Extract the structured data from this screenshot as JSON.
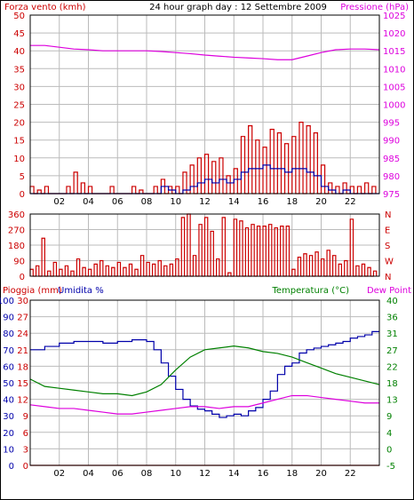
{
  "colors": {
    "red": "#cc0000",
    "blue": "#0000aa",
    "magenta": "#dd00dd",
    "green": "#008000",
    "grid": "#bbbbbb",
    "axis": "#000000",
    "frame": "#000000"
  },
  "hour_ticks": [
    "02",
    "04",
    "06",
    "08",
    "10",
    "12",
    "14",
    "16",
    "18",
    "20",
    "22"
  ],
  "chart_data": [
    {
      "type": "line",
      "title": "24 hour graph day : 12 Settembre 2009",
      "left_axis": {
        "label": "Forza vento (kmh)",
        "range": [
          0,
          50
        ],
        "ticks": [
          "0",
          "5",
          "10",
          "15",
          "20",
          "25",
          "30",
          "35",
          "40",
          "45",
          "50"
        ]
      },
      "right_axis": {
        "label": "Pressione (hPa)",
        "range": [
          975,
          1025
        ],
        "ticks": [
          "975",
          "980",
          "985",
          "990",
          "995",
          "1000",
          "1005",
          "1010",
          "1015",
          "1020",
          "1025"
        ]
      },
      "x": {
        "unit": "hour",
        "range": [
          0,
          24
        ],
        "ticks": [
          "02",
          "04",
          "06",
          "08",
          "10",
          "12",
          "14",
          "16",
          "18",
          "20",
          "22"
        ]
      },
      "grid": true,
      "series": [
        {
          "key": "gust",
          "color": "red",
          "axis": "left",
          "style": "spiky",
          "x": [
            0,
            0.5,
            1,
            1.5,
            2,
            2.5,
            3,
            3.5,
            4,
            4.5,
            5,
            5.5,
            6,
            6.5,
            7,
            7.5,
            8,
            8.5,
            9,
            9.5,
            10,
            10.5,
            11,
            11.5,
            12,
            12.5,
            13,
            13.5,
            14,
            14.5,
            15,
            15.5,
            16,
            16.5,
            17,
            17.5,
            18,
            18.5,
            19,
            19.5,
            20,
            20.5,
            21,
            21.5,
            22,
            22.5,
            23,
            23.5
          ],
          "y": [
            2,
            1,
            2,
            0,
            0,
            2,
            6,
            3,
            2,
            0,
            0,
            2,
            0,
            0,
            2,
            1,
            0,
            2,
            4,
            2,
            2,
            6,
            8,
            10,
            11,
            9,
            10,
            5,
            7,
            16,
            19,
            15,
            13,
            18,
            17,
            14,
            16,
            20,
            19,
            17,
            8,
            3,
            2,
            3,
            2,
            2,
            3,
            2
          ]
        },
        {
          "key": "wind",
          "color": "blue",
          "axis": "left",
          "style": "stepped",
          "x": [
            0,
            0.5,
            1,
            1.5,
            2,
            2.5,
            3,
            3.5,
            4,
            4.5,
            5,
            5.5,
            6,
            6.5,
            7,
            7.5,
            8,
            8.5,
            9,
            9.5,
            10,
            10.5,
            11,
            11.5,
            12,
            12.5,
            13,
            13.5,
            14,
            14.5,
            15,
            15.5,
            16,
            16.5,
            17,
            17.5,
            18,
            18.5,
            19,
            19.5,
            20,
            20.5,
            21,
            21.5,
            22,
            22.5,
            23,
            23.5
          ],
          "y": [
            0,
            0,
            0,
            0,
            0,
            0,
            0,
            0,
            0,
            0,
            0,
            0,
            0,
            0,
            0,
            0,
            0,
            0,
            2,
            1,
            0,
            1,
            2,
            3,
            4,
            3,
            4,
            3,
            4,
            6,
            7,
            7,
            8,
            7,
            7,
            6,
            7,
            7,
            6,
            5,
            2,
            1,
            0,
            1,
            0,
            0,
            0,
            0
          ]
        },
        {
          "key": "pressure",
          "color": "magenta",
          "axis": "right",
          "style": "smooth",
          "x": [
            0,
            1,
            2,
            3,
            4,
            5,
            6,
            7,
            8,
            9,
            10,
            11,
            12,
            13,
            14,
            15,
            16,
            17,
            18,
            19,
            20,
            21,
            22,
            23,
            24
          ],
          "y": [
            1016.5,
            1016.5,
            1016,
            1015.5,
            1015.3,
            1015,
            1015,
            1015,
            1015,
            1014.8,
            1014.5,
            1014.2,
            1013.8,
            1013.5,
            1013.2,
            1013,
            1012.8,
            1012.5,
            1012.5,
            1013.5,
            1014.5,
            1015.3,
            1015.5,
            1015.5,
            1015.3
          ]
        }
      ]
    },
    {
      "type": "line",
      "left_axis": {
        "label": "",
        "range": [
          0,
          360
        ],
        "ticks": [
          "0",
          "90",
          "180",
          "270",
          "360"
        ]
      },
      "right_axis": {
        "label": "",
        "ticks": [
          "N",
          "E",
          "S",
          "W",
          "N"
        ]
      },
      "x": {
        "unit": "hour",
        "range": [
          0,
          24
        ]
      },
      "grid": true,
      "series": [
        {
          "key": "direction",
          "color": "red",
          "axis": "left",
          "style": "spiky",
          "x": [
            0,
            0.4,
            0.8,
            1.2,
            1.6,
            2,
            2.4,
            2.8,
            3.2,
            3.6,
            4,
            4.4,
            4.8,
            5.2,
            5.6,
            6,
            6.4,
            6.8,
            7.2,
            7.6,
            8,
            8.4,
            8.8,
            9.2,
            9.6,
            10,
            10.4,
            10.8,
            11.2,
            11.6,
            12,
            12.4,
            12.8,
            13.2,
            13.6,
            14,
            14.4,
            14.8,
            15.2,
            15.6,
            16,
            16.4,
            16.8,
            17.2,
            17.6,
            18,
            18.4,
            18.8,
            19.2,
            19.6,
            20,
            20.4,
            20.8,
            21.2,
            21.6,
            22,
            22.4,
            22.8,
            23.2,
            23.6
          ],
          "y": [
            40,
            60,
            220,
            30,
            80,
            40,
            60,
            30,
            100,
            50,
            40,
            70,
            90,
            60,
            50,
            80,
            50,
            70,
            40,
            120,
            80,
            70,
            90,
            60,
            70,
            100,
            340,
            360,
            120,
            300,
            340,
            260,
            100,
            340,
            20,
            330,
            320,
            280,
            300,
            290,
            290,
            300,
            280,
            290,
            290,
            40,
            110,
            130,
            120,
            140,
            100,
            150,
            120,
            70,
            90,
            330,
            60,
            70,
            50,
            30
          ]
        }
      ]
    },
    {
      "type": "line",
      "left_axis": {
        "label": "Pioggia (mm)",
        "range": [
          0,
          30
        ],
        "ticks": [
          "0",
          "3",
          "6",
          "9",
          "12",
          "15",
          "18",
          "21",
          "24",
          "27",
          "30"
        ]
      },
      "left_axis2": {
        "label": "Umidita %",
        "range": [
          0,
          100
        ],
        "ticks": [
          "0",
          "10",
          "20",
          "30",
          "40",
          "50",
          "60",
          "70",
          "80",
          "90",
          "100"
        ]
      },
      "right_axis": {
        "label": "Temperatura (°C)",
        "range": [
          -5,
          40
        ],
        "ticks": [
          "-5",
          "0",
          "4",
          "9",
          "13",
          "18",
          "22",
          "27",
          "31",
          "36",
          "40"
        ]
      },
      "right_axis_label2": "Dew Point",
      "x": {
        "unit": "hour",
        "range": [
          0,
          24
        ],
        "ticks": [
          "02",
          "04",
          "06",
          "08",
          "10",
          "12",
          "14",
          "16",
          "18",
          "20",
          "22"
        ]
      },
      "grid": true,
      "series": [
        {
          "key": "rain",
          "color": "red",
          "axis": "left",
          "style": "flat",
          "x": [
            0,
            24
          ],
          "y": [
            0,
            0
          ]
        },
        {
          "key": "humidity",
          "color": "blue",
          "axis": "left2",
          "style": "stepped",
          "x": [
            0,
            1,
            2,
            3,
            4,
            5,
            6,
            7,
            8,
            8.5,
            9,
            9.5,
            10,
            10.5,
            11,
            11.5,
            12,
            12.5,
            13,
            13.5,
            14,
            14.5,
            15,
            15.5,
            16,
            16.5,
            17,
            17.5,
            18,
            18.5,
            19,
            19.5,
            20,
            20.5,
            21,
            21.5,
            22,
            22.5,
            23,
            23.5
          ],
          "y": [
            70,
            72,
            74,
            75,
            75,
            74,
            75,
            76,
            75,
            70,
            62,
            54,
            46,
            40,
            36,
            34,
            33,
            31,
            29,
            30,
            31,
            30,
            33,
            35,
            40,
            45,
            55,
            60,
            62,
            68,
            70,
            71,
            72,
            73,
            74,
            75,
            77,
            78,
            79,
            81
          ]
        },
        {
          "key": "temperature",
          "color": "green",
          "axis": "right",
          "style": "smooth",
          "x": [
            0,
            1,
            2,
            3,
            4,
            5,
            6,
            7,
            8,
            9,
            10,
            11,
            12,
            13,
            14,
            15,
            16,
            17,
            18,
            19,
            20,
            21,
            22,
            23,
            24
          ],
          "y": [
            18.5,
            16.5,
            16,
            15.5,
            15,
            14.5,
            14.5,
            14,
            15,
            17,
            21,
            24.5,
            26.5,
            27,
            27.5,
            27,
            26,
            25.5,
            24.5,
            23,
            21.5,
            20,
            19,
            18,
            17
          ]
        },
        {
          "key": "dewpoint",
          "color": "magenta",
          "axis": "right",
          "style": "smooth",
          "x": [
            0,
            1,
            2,
            3,
            4,
            5,
            6,
            7,
            8,
            9,
            10,
            11,
            12,
            13,
            14,
            15,
            16,
            17,
            18,
            19,
            20,
            21,
            22,
            23,
            24
          ],
          "y": [
            11.5,
            11,
            10.5,
            10.5,
            10,
            9.5,
            9,
            9,
            9.5,
            10,
            10.5,
            11,
            11,
            10.5,
            11,
            11,
            12,
            13,
            14,
            14,
            13.5,
            13,
            12.5,
            12,
            12
          ]
        }
      ]
    }
  ]
}
